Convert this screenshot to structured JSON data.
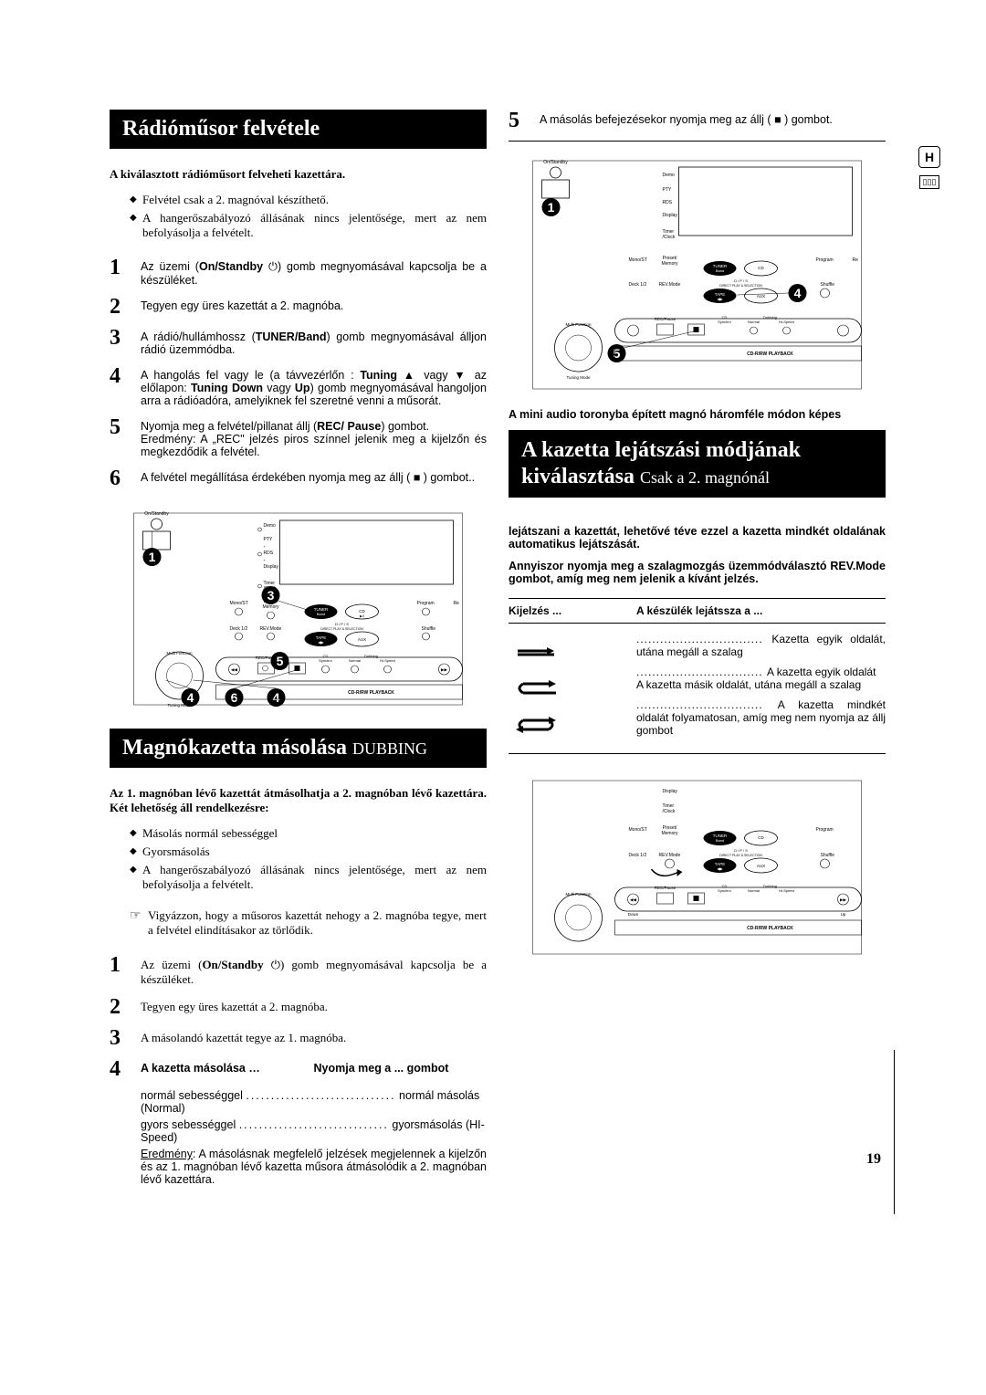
{
  "page_number": "19",
  "side": {
    "badge": "H"
  },
  "left": {
    "title1": "Rádióműsor felvétele",
    "intro1": "A kiválasztott rádióműsort felveheti kazettára.",
    "bullets1": [
      "Felvétel csak a 2. magnóval készíthető.",
      "A hangerőszabályozó állásának nincs jelentősége, mert az nem befolyásolja a felvételt."
    ],
    "steps1": [
      {
        "n": "1",
        "html": "Az üzemi (<b>On/Standby</b> ⏻) gomb megnyomásával kapcsolja be a készüléket."
      },
      {
        "n": "2",
        "html": "Tegyen egy üres kazettát a 2. magnóba."
      },
      {
        "n": "3",
        "html": "A rádió/hullámhossz (<b>TUNER/Band</b>) gomb megnyomásával álljon rádió üzemmódba."
      },
      {
        "n": "4",
        "html": "A hangolás fel vagy le (a távvezérlőn : <b>Tuning</b> ▲ vagy ▼ az előlapon: <b>Tuning Down</b> vagy <b>Up</b>) gomb megnyomásával hangoljon arra a rádióadóra, amelyiknek fel szeretné venni a műsorát."
      },
      {
        "n": "5",
        "html": "Nyomja meg a felvétel/pillanat állj (<b>REC/ Pause</b>) gombot.<br>Eredmény: A „REC\" jelzés piros színnel jelenik meg a kijelzőn és megkezdődik a felvétel."
      },
      {
        "n": "6",
        "html": "A felvétel megállítása érdekében nyomja meg az állj ( ■ ) gombot.."
      }
    ],
    "diagram1": {
      "callouts": [
        "1",
        "3",
        "4",
        "5",
        "6"
      ],
      "panel_labels": [
        "On/Standby",
        "Demo",
        "PTY",
        "RDS",
        "Display",
        "Timer/Clock",
        "Mono/ST",
        "Preset/Memory",
        "Deck 1/2",
        "REV.Mode",
        "TUNER Band",
        "CD",
        "TAPE",
        "AUX",
        "D/P/S",
        "DIRECT PLAY & SELECTION",
        "Program",
        "Re",
        "Shuffle",
        "Multi Function",
        "REC/Pause",
        "CD Synchro",
        "Dubbing",
        "Normal",
        "Hi-Speed",
        "Tuning Mode",
        "CD-R/RW PLAYBACK"
      ]
    },
    "title2_main": "Magnókazetta másolása ",
    "title2_sub": "DUBBING",
    "intro2": "Az 1. magnóban lévő kazettát átmásolhatja a 2. magnóban lévő kazettára. Két lehetőség áll rendelkezésre:",
    "bullets2": [
      "Másolás normál sebességgel",
      "Gyorsmásolás"
    ],
    "bullets2b": [
      "A hangerőszabályozó állásának nincs jelentősége, mert az nem befolyásolja a felvételt."
    ],
    "note2": "Vigyázzon, hogy a műsoros kazettát nehogy a 2. magnóba tegye, mert a felvétel elindításakor az törlődik.",
    "steps2": [
      {
        "n": "1",
        "html": "Az üzemi (<b>On/Standby</b> ⏻) gomb megnyomásával kapcsolja be a készüléket."
      },
      {
        "n": "2",
        "html": "Tegyen egy üres kazettát a 2. magnóba."
      },
      {
        "n": "3",
        "html": "A másolandó kazettát tegye az 1. magnóba."
      }
    ],
    "step4_hdr_left": "A kazetta másolása …",
    "step4_hdr_right": "Nyomja meg a ... gombot",
    "step4_rows": [
      {
        "l": "normál sebességgel",
        "r": "normál másolás (Normal)"
      },
      {
        "l": "gyors sebességgel",
        "r": "gyorsmásolás (HI-Speed)"
      }
    ],
    "step4_result_label": "Eredmény",
    "step4_result": ": A másolásnak megfelelő jelzések megjelennek a kijelzőn és az 1. magnóban lévő kazetta műsora átmásolódik a 2. magnóban lévő kazettára."
  },
  "right": {
    "step5": {
      "n": "5",
      "html": "A másolás befejezésekor nyomja meg az állj ( ■ ) gombot."
    },
    "diagram2": {
      "callouts": [
        "1",
        "4",
        "5"
      ]
    },
    "pretitle": "A mini audio toronyba épített magnó háromféle módon képes",
    "title_main": "A kazetta lejátszási módjának\nkiválasztása ",
    "title_sub": "Csak a 2. magnónál",
    "para1": "lejátszani a kazettát, lehetővé téve ezzel a kazetta mindkét oldalának automatikus lejátszását.",
    "para2": "Annyiszor nyomja meg a szalagmozgás üzemmódválasztó REV.Mode gombot, amíg meg nem jelenik a kívánt jelzés.",
    "thead": {
      "c1": "Kijelzés ...",
      "c2": "A készülék lejátssza a ..."
    },
    "trows": [
      {
        "sym": "⇀",
        "txt": "Kazetta egyik oldalát, utána megáll a szalag"
      },
      {
        "sym": "↻ ",
        "txt": "A kazetta egyik oldalát\nA kazetta másik oldalát, utána megáll a szalag"
      },
      {
        "sym": "⟲",
        "txt": "A kazetta mindkét oldalát folyamatosan, amíg meg nem nyomja az állj gombot"
      }
    ],
    "diagram3": {
      "callouts": []
    }
  }
}
